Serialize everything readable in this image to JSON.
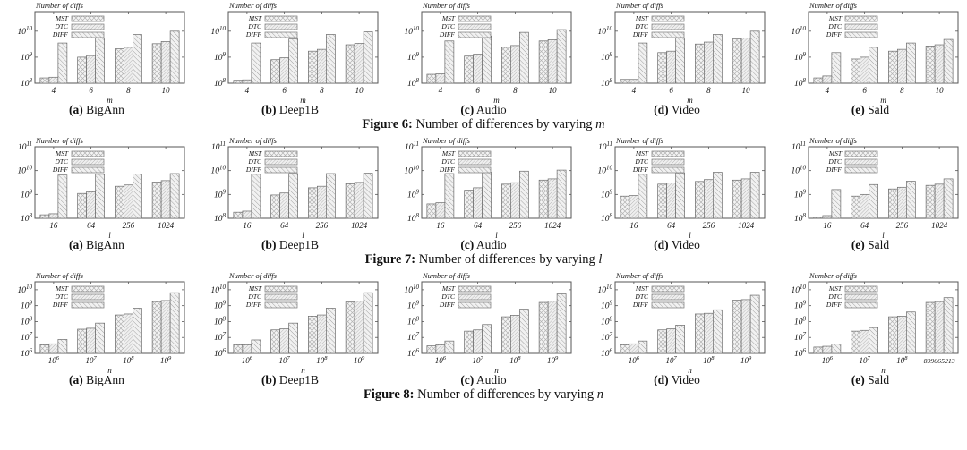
{
  "page": {
    "background": "#ffffff"
  },
  "colors": {
    "bar_fill": "#f2f2f2",
    "hatch": "#9a9a9a",
    "border": "#555555",
    "text": "#111111"
  },
  "chart_data": {
    "type": "bar",
    "ylabel": "Number of diffs",
    "legend_position": "top-left-inside",
    "series_names": [
      "MST",
      "DTC",
      "DIFF"
    ],
    "figures": [
      {
        "caption_label": "Figure 6:",
        "caption_text": "Number of differences by varying",
        "caption_var": "m",
        "xlabel": "m",
        "yticks_exp": [
          8,
          9,
          10
        ],
        "ymin_exp": 8,
        "ymax_exp": 10.75,
        "charts": [
          {
            "label": "(a)",
            "dataset": "BigAnn",
            "categories": [
              "4",
              "6",
              "8",
              "10"
            ],
            "series": [
              {
                "name": "MST",
                "values": [
                  160000000.0,
                  1000000000.0,
                  2100000000.0,
                  3300000000.0
                ]
              },
              {
                "name": "DTC",
                "values": [
                  170000000.0,
                  1150000000.0,
                  2400000000.0,
                  4000000000.0
                ]
              },
              {
                "name": "DIFF",
                "values": [
                  3500000000.0,
                  5500000000.0,
                  7500000000.0,
                  10000000000.0
                ]
              }
            ]
          },
          {
            "label": "(b)",
            "dataset": "Deep1B",
            "categories": [
              "4",
              "6",
              "8",
              "10"
            ],
            "series": [
              {
                "name": "MST",
                "values": [
                  130000000.0,
                  800000000.0,
                  1700000000.0,
                  3000000000.0
                ]
              },
              {
                "name": "DTC",
                "values": [
                  135000000.0,
                  950000000.0,
                  2000000000.0,
                  3400000000.0
                ]
              },
              {
                "name": "DIFF",
                "values": [
                  3500000000.0,
                  5000000000.0,
                  7500000000.0,
                  9500000000.0
                ]
              }
            ]
          },
          {
            "label": "(c)",
            "dataset": "Audio",
            "categories": [
              "4",
              "6",
              "8",
              "10"
            ],
            "series": [
              {
                "name": "MST",
                "values": [
                  220000000.0,
                  1100000000.0,
                  2400000000.0,
                  4200000000.0
                ]
              },
              {
                "name": "DTC",
                "values": [
                  230000000.0,
                  1300000000.0,
                  2800000000.0,
                  4700000000.0
                ]
              },
              {
                "name": "DIFF",
                "values": [
                  4200000000.0,
                  6500000000.0,
                  9000000000.0,
                  11500000000.0
                ]
              }
            ]
          },
          {
            "label": "(d)",
            "dataset": "Video",
            "categories": [
              "4",
              "6",
              "8",
              "10"
            ],
            "series": [
              {
                "name": "MST",
                "values": [
                  140000000.0,
                  1500000000.0,
                  3200000000.0,
                  5000000000.0
                ]
              },
              {
                "name": "DTC",
                "values": [
                  140000000.0,
                  1700000000.0,
                  3800000000.0,
                  5500000000.0
                ]
              },
              {
                "name": "DIFF",
                "values": [
                  3500000000.0,
                  5500000000.0,
                  7500000000.0,
                  10000000000.0
                ]
              }
            ]
          },
          {
            "label": "(e)",
            "dataset": "Sald",
            "categories": [
              "4",
              "6",
              "8",
              "10"
            ],
            "series": [
              {
                "name": "MST",
                "values": [
                  160000000.0,
                  850000000.0,
                  1700000000.0,
                  2700000000.0
                ]
              },
              {
                "name": "DTC",
                "values": [
                  190000000.0,
                  1000000000.0,
                  2000000000.0,
                  3000000000.0
                ]
              },
              {
                "name": "DIFF",
                "values": [
                  1500000000.0,
                  2400000000.0,
                  3500000000.0,
                  4800000000.0
                ]
              }
            ]
          }
        ]
      },
      {
        "caption_label": "Figure 7:",
        "caption_text": "Number of differences by varying",
        "caption_var": "l",
        "xlabel": "l",
        "yticks_exp": [
          8,
          9,
          10,
          11
        ],
        "ymin_exp": 8,
        "ymax_exp": 11,
        "charts": [
          {
            "label": "(a)",
            "dataset": "BigAnn",
            "categories": [
              "16",
              "64",
              "256",
              "1024"
            ],
            "series": [
              {
                "name": "MST",
                "values": [
                  140000000.0,
                  1100000000.0,
                  2200000000.0,
                  3300000000.0
                ]
              },
              {
                "name": "DTC",
                "values": [
                  155000000.0,
                  1300000000.0,
                  2500000000.0,
                  3800000000.0
                ]
              },
              {
                "name": "DIFF",
                "values": [
                  6500000000.0,
                  7000000000.0,
                  7200000000.0,
                  7500000000.0
                ]
              }
            ]
          },
          {
            "label": "(b)",
            "dataset": "Deep1B",
            "categories": [
              "16",
              "64",
              "256",
              "1024"
            ],
            "series": [
              {
                "name": "MST",
                "values": [
                  180000000.0,
                  950000000.0,
                  1900000000.0,
                  2800000000.0
                ]
              },
              {
                "name": "DTC",
                "values": [
                  200000000.0,
                  1150000000.0,
                  2200000000.0,
                  3200000000.0
                ]
              },
              {
                "name": "DIFF",
                "values": [
                  7000000000.0,
                  7500000000.0,
                  7500000000.0,
                  7800000000.0
                ]
              }
            ]
          },
          {
            "label": "(c)",
            "dataset": "Audio",
            "categories": [
              "16",
              "64",
              "256",
              "1024"
            ],
            "series": [
              {
                "name": "MST",
                "values": [
                  400000000.0,
                  1500000000.0,
                  2700000000.0,
                  4000000000.0
                ]
              },
              {
                "name": "DTC",
                "values": [
                  450000000.0,
                  1900000000.0,
                  3100000000.0,
                  4500000000.0
                ]
              },
              {
                "name": "DIFF",
                "values": [
                  7500000000.0,
                  8500000000.0,
                  9500000000.0,
                  10500000000.0
                ]
              }
            ]
          },
          {
            "label": "(d)",
            "dataset": "Video",
            "categories": [
              "16",
              "64",
              "256",
              "1024"
            ],
            "series": [
              {
                "name": "MST",
                "values": [
                  850000000.0,
                  2700000000.0,
                  3500000000.0,
                  4000000000.0
                ]
              },
              {
                "name": "DTC",
                "values": [
                  900000000.0,
                  3000000000.0,
                  4200000000.0,
                  4500000000.0
                ]
              },
              {
                "name": "DIFF",
                "values": [
                  7000000000.0,
                  8000000000.0,
                  8500000000.0,
                  8500000000.0
                ]
              }
            ]
          },
          {
            "label": "(e)",
            "dataset": "Sald",
            "categories": [
              "16",
              "64",
              "256",
              "1024"
            ],
            "series": [
              {
                "name": "MST",
                "values": [
                  110000000.0,
                  850000000.0,
                  1700000000.0,
                  2400000000.0
                ]
              },
              {
                "name": "DTC",
                "values": [
                  130000000.0,
                  1000000000.0,
                  2000000000.0,
                  2700000000.0
                ]
              },
              {
                "name": "DIFF",
                "values": [
                  1600000000.0,
                  2600000000.0,
                  3600000000.0,
                  4500000000.0
                ]
              }
            ]
          }
        ]
      },
      {
        "caption_label": "Figure 8:",
        "caption_text": "Number of differences by varying",
        "caption_var": "n",
        "xlabel": "n",
        "yticks_exp": [
          6,
          7,
          8,
          9,
          10
        ],
        "ymin_exp": 6,
        "ymax_exp": 10.5,
        "charts": [
          {
            "label": "(a)",
            "dataset": "BigAnn",
            "categories": [
              "10^6",
              "10^7",
              "10^8",
              "10^9"
            ],
            "series": [
              {
                "name": "MST",
                "values": [
                  3500000.0,
                  33000000.0,
                  260000000.0,
                  1800000000.0
                ]
              },
              {
                "name": "DTC",
                "values": [
                  4000000.0,
                  38000000.0,
                  300000000.0,
                  2100000000.0
                ]
              },
              {
                "name": "DIFF",
                "values": [
                  7500000.0,
                  80000000.0,
                  700000000.0,
                  6500000000.0
                ]
              }
            ]
          },
          {
            "label": "(b)",
            "dataset": "Deep1B",
            "categories": [
              "10^6",
              "10^7",
              "10^8",
              "10^9"
            ],
            "series": [
              {
                "name": "MST",
                "values": [
                  3500000.0,
                  30000000.0,
                  220000000.0,
                  1700000000.0
                ]
              },
              {
                "name": "DTC",
                "values": [
                  3500000.0,
                  35000000.0,
                  260000000.0,
                  1900000000.0
                ]
              },
              {
                "name": "DIFF",
                "values": [
                  7000000.0,
                  80000000.0,
                  700000000.0,
                  6500000000.0
                ]
              }
            ]
          },
          {
            "label": "(c)",
            "dataset": "Audio",
            "categories": [
              "10^6",
              "10^7",
              "10^8",
              "10^9"
            ],
            "series": [
              {
                "name": "MST",
                "values": [
                  3000000.0,
                  25000000.0,
                  200000000.0,
                  1600000000.0
                ]
              },
              {
                "name": "DTC",
                "values": [
                  3500000.0,
                  30000000.0,
                  250000000.0,
                  1900000000.0
                ]
              },
              {
                "name": "DIFF",
                "values": [
                  6000000.0,
                  65000000.0,
                  600000000.0,
                  5500000000.0
                ]
              }
            ]
          },
          {
            "label": "(d)",
            "dataset": "Video",
            "categories": [
              "10^6",
              "10^7",
              "10^8",
              "10^9"
            ],
            "series": [
              {
                "name": "MST",
                "values": [
                  3500000.0,
                  30000000.0,
                  300000000.0,
                  2200000000.0
                ]
              },
              {
                "name": "DTC",
                "values": [
                  4000000.0,
                  35000000.0,
                  330000000.0,
                  2400000000.0
                ]
              },
              {
                "name": "DIFF",
                "values": [
                  6000000.0,
                  60000000.0,
                  550000000.0,
                  4500000000.0
                ]
              }
            ]
          },
          {
            "label": "(e)",
            "dataset": "Sald",
            "categories": [
              "10^6",
              "10^7",
              "10^8",
              "899065213"
            ],
            "series": [
              {
                "name": "MST",
                "values": [
                  2500000.0,
                  25000000.0,
                  200000000.0,
                  1600000000.0
                ]
              },
              {
                "name": "DTC",
                "values": [
                  2800000.0,
                  28000000.0,
                  220000000.0,
                  1800000000.0
                ]
              },
              {
                "name": "DIFF",
                "values": [
                  3800000.0,
                  42000000.0,
                  400000000.0,
                  3200000000.0
                ]
              }
            ]
          }
        ]
      }
    ]
  }
}
